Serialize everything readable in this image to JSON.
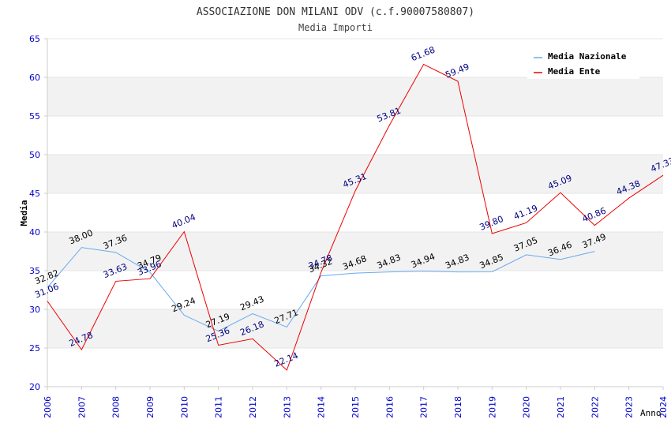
{
  "chart_data": {
    "type": "line",
    "title": "ASSOCIAZIONE DON MILANI ODV (c.f.90007580807)",
    "subtitle": "Media Importi",
    "xlabel": "Anno",
    "ylabel": "Media",
    "ylim": [
      20,
      65
    ],
    "yticks": [
      "20",
      "25",
      "30",
      "35",
      "40",
      "45",
      "50",
      "55",
      "60",
      "65"
    ],
    "categories": [
      "2006",
      "2007",
      "2008",
      "2009",
      "2010",
      "2011",
      "2012",
      "2013",
      "2014",
      "2015",
      "2016",
      "2017",
      "2018",
      "2019",
      "2020",
      "2021",
      "2022",
      "2023",
      "2024"
    ],
    "legend_position": "top-right",
    "series": [
      {
        "name": "Media Nazionale",
        "color": "#66aaee",
        "label_color": "#000000",
        "values": [
          32.82,
          38.0,
          37.36,
          34.79,
          29.24,
          27.19,
          29.43,
          27.71,
          34.32,
          34.68,
          34.83,
          34.94,
          34.83,
          34.85,
          37.05,
          36.46,
          37.49,
          null,
          null
        ],
        "labels": [
          "32.82",
          "38.00",
          "37.36",
          "34.79",
          "29.24",
          "27.19",
          "29.43",
          "27.71",
          "34.32",
          "34.68",
          "34.83",
          "34.94",
          "34.83",
          "34.85",
          "37.05",
          "36.46",
          "37.49",
          null,
          null
        ]
      },
      {
        "name": "Media Ente",
        "color": "#ee0000",
        "label_color": "#000080",
        "values": [
          31.06,
          24.78,
          33.63,
          33.96,
          40.04,
          25.36,
          26.18,
          22.14,
          34.78,
          45.31,
          53.81,
          61.68,
          59.49,
          39.8,
          41.19,
          45.09,
          40.86,
          44.38,
          47.33
        ],
        "labels": [
          "31.06",
          "24.78",
          "33.63",
          "33.96",
          "40.04",
          "25.36",
          "26.18",
          "22.14",
          "34.78",
          "45.31",
          "53.81",
          "61.68",
          "59.49",
          "39.80",
          "41.19",
          "45.09",
          "40.86",
          "44.38",
          "47.33"
        ]
      }
    ],
    "colors": {
      "axis_tick": "#0000cc",
      "title": "#333333",
      "band": "#f2f2f2"
    }
  }
}
